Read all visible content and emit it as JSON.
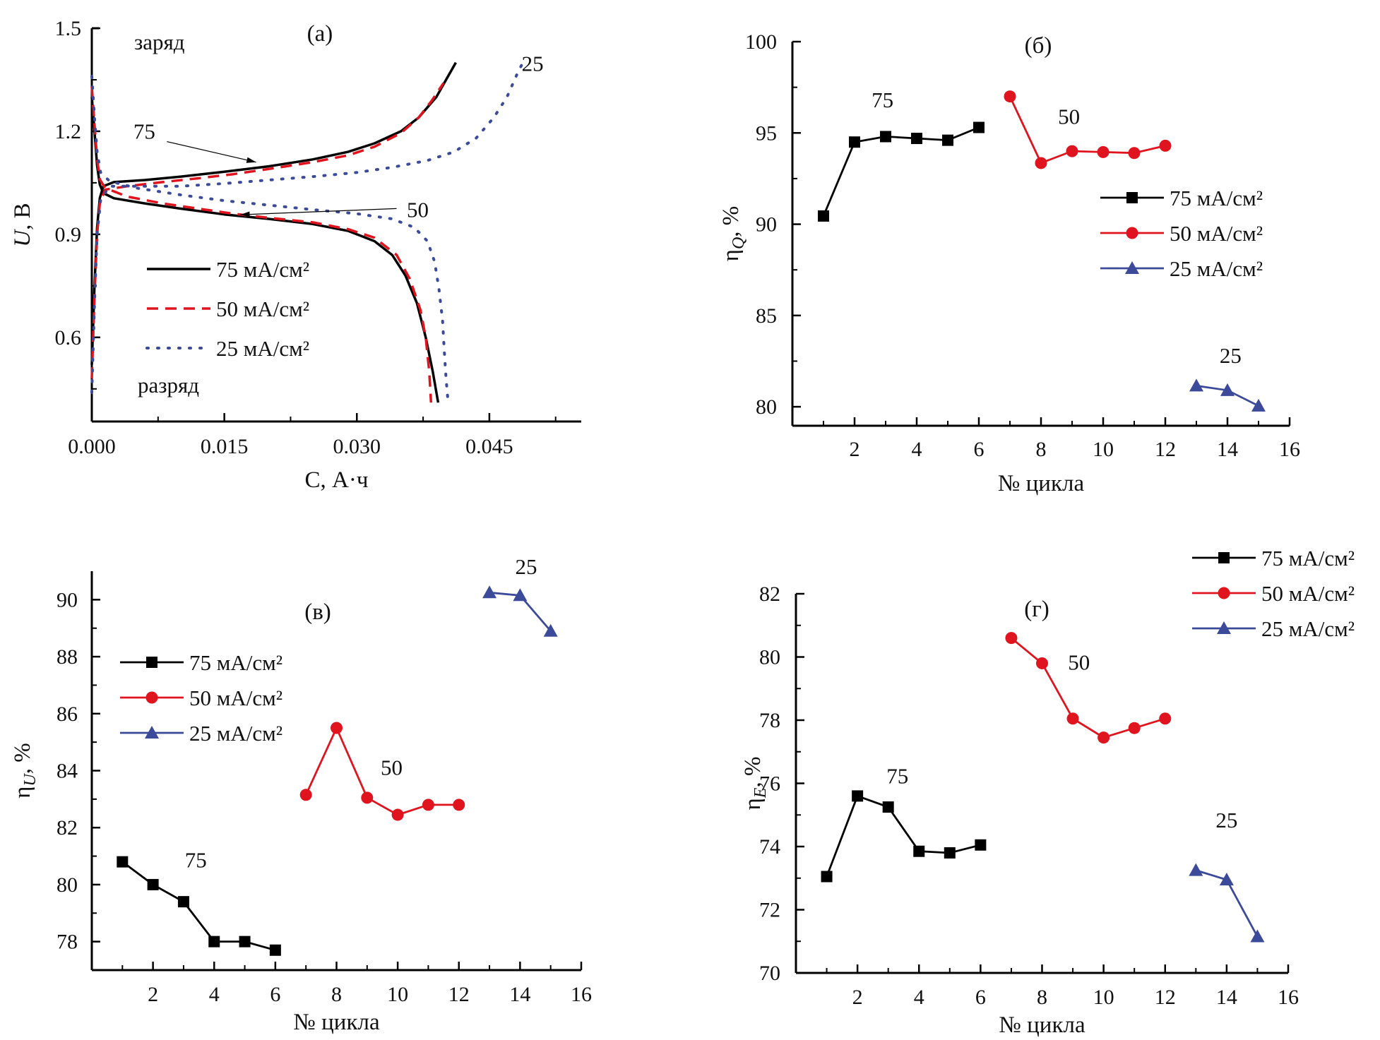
{
  "figure": {
    "colors": {
      "s75": "#000000",
      "s50": "#e0141e",
      "s25": "#3c4a9a"
    }
  },
  "chart_data": [
    {
      "id": "a",
      "type": "line",
      "panel_label": "(а)",
      "xlabel": "C, А·ч",
      "ylabel_main": "U",
      "ylabel_unit": ", В",
      "xlim": [
        0.0,
        0.0554
      ],
      "ylim": [
        0.355,
        1.5
      ],
      "xticks": [
        0.0,
        0.015,
        0.03,
        0.045
      ],
      "xtick_labels": [
        "0.000",
        "0.015",
        "0.030",
        "0.045"
      ],
      "xminor": [
        0.0075,
        0.0225,
        0.0375,
        0.0525
      ],
      "yticks": [
        0.6,
        0.9,
        1.2,
        1.5
      ],
      "ytick_labels": [
        "0.6",
        "0.9",
        "1.2",
        "1.5"
      ],
      "yminor": [
        0.45,
        0.75,
        1.05,
        1.35
      ],
      "grid": false,
      "legend_position": "center-left",
      "text_labels": {
        "charge": "заряд",
        "discharge": "разряд"
      },
      "annotations": [
        {
          "text": "75",
          "points_to_series": "75 мА/см²",
          "at": [
            0.0186,
            1.11
          ],
          "from": [
            0.0085,
            1.17
          ]
        },
        {
          "text": "50",
          "points_to_series": "50 мА/см²",
          "at": [
            0.0168,
            0.957
          ],
          "from": [
            0.0345,
            0.975
          ]
        },
        {
          "text": "25",
          "points_to_series": "25 мА/см²",
          "at": [
            0.0475,
            1.4
          ]
        }
      ],
      "series": [
        {
          "name": "75 мА/см²",
          "key": "s75",
          "style": "solid",
          "charge": [
            [
              0.0,
              0.52
            ],
            [
              0.0003,
              0.75
            ],
            [
              0.0006,
              0.92
            ],
            [
              0.0009,
              1.005
            ],
            [
              0.0013,
              1.04
            ],
            [
              0.0025,
              1.052
            ],
            [
              0.006,
              1.058
            ],
            [
              0.01,
              1.068
            ],
            [
              0.015,
              1.082
            ],
            [
              0.02,
              1.098
            ],
            [
              0.025,
              1.118
            ],
            [
              0.029,
              1.14
            ],
            [
              0.032,
              1.165
            ],
            [
              0.035,
              1.2
            ],
            [
              0.037,
              1.24
            ],
            [
              0.039,
              1.3
            ],
            [
              0.0412,
              1.4
            ]
          ],
          "discharge": [
            [
              0.0,
              1.3
            ],
            [
              0.0003,
              1.2
            ],
            [
              0.0006,
              1.1
            ],
            [
              0.0009,
              1.045
            ],
            [
              0.0013,
              1.02
            ],
            [
              0.0025,
              1.005
            ],
            [
              0.006,
              0.99
            ],
            [
              0.01,
              0.975
            ],
            [
              0.015,
              0.958
            ],
            [
              0.02,
              0.945
            ],
            [
              0.025,
              0.93
            ],
            [
              0.029,
              0.91
            ],
            [
              0.032,
              0.88
            ],
            [
              0.034,
              0.84
            ],
            [
              0.0355,
              0.78
            ],
            [
              0.0368,
              0.7
            ],
            [
              0.0378,
              0.6
            ],
            [
              0.0386,
              0.5
            ],
            [
              0.0392,
              0.41
            ]
          ]
        },
        {
          "name": "50 мА/см²",
          "key": "s50",
          "style": "dashed",
          "charge": [
            [
              0.0,
              0.48
            ],
            [
              0.0003,
              0.72
            ],
            [
              0.0006,
              0.9
            ],
            [
              0.0009,
              0.99
            ],
            [
              0.0015,
              1.03
            ],
            [
              0.004,
              1.04
            ],
            [
              0.008,
              1.052
            ],
            [
              0.012,
              1.063
            ],
            [
              0.016,
              1.075
            ],
            [
              0.02,
              1.09
            ],
            [
              0.025,
              1.11
            ],
            [
              0.029,
              1.13
            ],
            [
              0.032,
              1.155
            ],
            [
              0.035,
              1.195
            ],
            [
              0.037,
              1.24
            ],
            [
              0.0385,
              1.29
            ],
            [
              0.0398,
              1.34
            ]
          ],
          "discharge": [
            [
              0.0,
              1.33
            ],
            [
              0.0003,
              1.22
            ],
            [
              0.0006,
              1.12
            ],
            [
              0.0009,
              1.06
            ],
            [
              0.0015,
              1.035
            ],
            [
              0.004,
              1.01
            ],
            [
              0.008,
              0.99
            ],
            [
              0.012,
              0.975
            ],
            [
              0.016,
              0.96
            ],
            [
              0.02,
              0.948
            ],
            [
              0.025,
              0.935
            ],
            [
              0.029,
              0.915
            ],
            [
              0.032,
              0.89
            ],
            [
              0.0345,
              0.84
            ],
            [
              0.036,
              0.77
            ],
            [
              0.0372,
              0.68
            ],
            [
              0.0378,
              0.6
            ],
            [
              0.0382,
              0.5
            ],
            [
              0.0384,
              0.41
            ]
          ]
        },
        {
          "name": "25 мА/см²",
          "key": "s25",
          "style": "dotted",
          "charge": [
            [
              0.0,
              0.44
            ],
            [
              0.0003,
              0.7
            ],
            [
              0.0006,
              0.9
            ],
            [
              0.001,
              1.0
            ],
            [
              0.002,
              1.04
            ],
            [
              0.005,
              1.04
            ],
            [
              0.01,
              1.04
            ],
            [
              0.015,
              1.048
            ],
            [
              0.02,
              1.058
            ],
            [
              0.025,
              1.068
            ],
            [
              0.03,
              1.08
            ],
            [
              0.034,
              1.095
            ],
            [
              0.038,
              1.115
            ],
            [
              0.041,
              1.14
            ],
            [
              0.0435,
              1.18
            ],
            [
              0.0455,
              1.24
            ],
            [
              0.047,
              1.3
            ],
            [
              0.0482,
              1.37
            ],
            [
              0.0488,
              1.4
            ]
          ],
          "discharge": [
            [
              0.0,
              1.36
            ],
            [
              0.0003,
              1.24
            ],
            [
              0.0006,
              1.14
            ],
            [
              0.001,
              1.08
            ],
            [
              0.002,
              1.055
            ],
            [
              0.005,
              1.035
            ],
            [
              0.01,
              1.015
            ],
            [
              0.015,
              0.998
            ],
            [
              0.02,
              0.985
            ],
            [
              0.025,
              0.972
            ],
            [
              0.03,
              0.96
            ],
            [
              0.034,
              0.945
            ],
            [
              0.0365,
              0.92
            ],
            [
              0.038,
              0.88
            ],
            [
              0.0388,
              0.82
            ],
            [
              0.0393,
              0.74
            ],
            [
              0.0397,
              0.65
            ],
            [
              0.0399,
              0.56
            ],
            [
              0.0401,
              0.48
            ],
            [
              0.0403,
              0.42
            ]
          ]
        }
      ]
    },
    {
      "id": "b",
      "type": "line",
      "panel_label": "(б)",
      "xlabel": "№ цикла",
      "ylabel_main": "η",
      "ylabel_sub": "Q",
      "ylabel_unit": ", %",
      "xlim": [
        0,
        16
      ],
      "ylim": [
        78.96,
        100
      ],
      "xticks": [
        2,
        4,
        6,
        8,
        10,
        12,
        14,
        16
      ],
      "xminor": [
        1,
        3,
        5,
        7,
        9,
        11,
        13,
        15
      ],
      "yticks": [
        80,
        85,
        90,
        95,
        100
      ],
      "yminor": [
        82.5,
        87.5,
        92.5,
        97.5
      ],
      "grid": false,
      "legend_position": "right",
      "annotations": [
        {
          "text": "75",
          "near": [
            2.9,
            96.4
          ]
        },
        {
          "text": "50",
          "near": [
            8.9,
            95.5
          ]
        },
        {
          "text": "25",
          "near": [
            14.1,
            82.4
          ]
        }
      ],
      "series": [
        {
          "name": "75 мА/см²",
          "key": "s75",
          "marker": "square",
          "x": [
            1,
            2,
            3,
            4,
            5,
            6
          ],
          "y": [
            90.45,
            94.5,
            94.8,
            94.7,
            94.6,
            95.3
          ]
        },
        {
          "name": "50 мА/см²",
          "key": "s50",
          "marker": "circle",
          "x": [
            7,
            8,
            9,
            10,
            11,
            12
          ],
          "y": [
            97.0,
            93.35,
            94.0,
            93.95,
            93.9,
            94.3
          ]
        },
        {
          "name": "25 мА/см²",
          "key": "s25",
          "marker": "triangle",
          "x": [
            13,
            14,
            15
          ],
          "y": [
            81.15,
            80.9,
            80.05
          ]
        }
      ]
    },
    {
      "id": "v",
      "type": "line",
      "panel_label": "(в)",
      "xlabel": "№ цикла",
      "ylabel_main": "η",
      "ylabel_sub": "U",
      "ylabel_unit": ", %",
      "xlim": [
        0,
        16
      ],
      "ylim": [
        77.0,
        91.0
      ],
      "xticks": [
        2,
        4,
        6,
        8,
        10,
        12,
        14,
        16
      ],
      "xminor": [
        1,
        3,
        5,
        7,
        9,
        11,
        13,
        15
      ],
      "yticks": [
        78,
        80,
        82,
        84,
        86,
        88,
        90
      ],
      "yminor": [
        79,
        81,
        83,
        85,
        87,
        89
      ],
      "grid": false,
      "legend_position": "upper-left",
      "annotations": [
        {
          "text": "75",
          "near": [
            3.4,
            80.6
          ]
        },
        {
          "text": "50",
          "near": [
            9.8,
            83.85
          ]
        },
        {
          "text": "25",
          "near": [
            14.2,
            90.9
          ]
        }
      ],
      "series": [
        {
          "name": "75 мА/см²",
          "key": "s75",
          "marker": "square",
          "x": [
            1,
            2,
            3,
            4,
            5,
            6
          ],
          "y": [
            80.8,
            80.0,
            79.4,
            78.0,
            78.0,
            77.7
          ]
        },
        {
          "name": "50 мА/см²",
          "key": "s50",
          "marker": "circle",
          "x": [
            7,
            8,
            9,
            10,
            11,
            12
          ],
          "y": [
            83.15,
            85.5,
            83.05,
            82.45,
            82.8,
            82.8
          ]
        },
        {
          "name": "25 мА/см²",
          "key": "s25",
          "marker": "triangle",
          "x": [
            13,
            14,
            15
          ],
          "y": [
            90.25,
            90.15,
            88.9
          ]
        }
      ]
    },
    {
      "id": "g",
      "type": "line",
      "panel_label": "(г)",
      "xlabel": "№ цикла",
      "ylabel_main": "η",
      "ylabel_sub": "E",
      "ylabel_unit": ", %",
      "xlim": [
        0,
        16
      ],
      "ylim": [
        70,
        82
      ],
      "xticks": [
        2,
        4,
        6,
        8,
        10,
        12,
        14,
        16
      ],
      "xminor": [
        1,
        3,
        5,
        7,
        9,
        11,
        13,
        15
      ],
      "yticks": [
        70,
        72,
        74,
        76,
        78,
        80,
        82
      ],
      "yminor": [
        71,
        73,
        75,
        77,
        79,
        81
      ],
      "grid": false,
      "legend_position": "top-right (outside)",
      "annotations": [
        {
          "text": "75",
          "near": [
            3.3,
            76.0
          ]
        },
        {
          "text": "50",
          "near": [
            9.2,
            79.6
          ]
        },
        {
          "text": "25",
          "near": [
            14.0,
            74.6
          ]
        }
      ],
      "series": [
        {
          "name": "75 мА/см²",
          "key": "s75",
          "marker": "square",
          "x": [
            1,
            2,
            3,
            4,
            5,
            6
          ],
          "y": [
            73.05,
            75.6,
            75.25,
            73.85,
            73.8,
            74.05
          ]
        },
        {
          "name": "50 мА/см²",
          "key": "s50",
          "marker": "circle",
          "x": [
            7,
            8,
            9,
            10,
            11,
            12
          ],
          "y": [
            80.6,
            79.8,
            78.05,
            77.45,
            77.75,
            78.05
          ]
        },
        {
          "name": "25 мА/см²",
          "key": "s25",
          "marker": "triangle",
          "x": [
            13,
            14,
            15
          ],
          "y": [
            73.25,
            72.95,
            71.15
          ]
        }
      ]
    }
  ]
}
